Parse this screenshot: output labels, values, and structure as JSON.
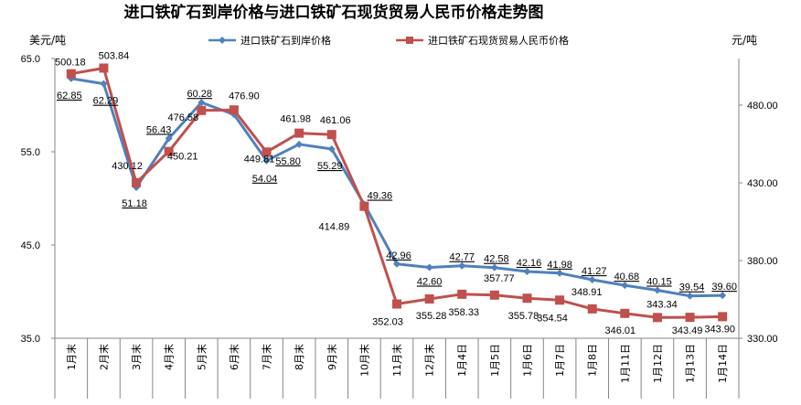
{
  "chart_data": {
    "type": "line",
    "title": "进口铁矿石到岸价格与进口铁矿石现货贸易人民币价格走势图",
    "left_axis_label": "美元/吨",
    "right_axis_label": "元/吨",
    "left_ylim": [
      35,
      65
    ],
    "right_ylim": [
      330,
      510
    ],
    "left_ticks": [
      "35.0",
      "45.0",
      "55.0",
      "65.0"
    ],
    "right_ticks": [
      "330.00",
      "380.00",
      "430.00",
      "480.00"
    ],
    "legend_position": "top",
    "grid": false,
    "categories": [
      "1月末",
      "2月末",
      "3月末",
      "4月末",
      "5月末",
      "6月末",
      "7月末",
      "8月末",
      "9月末",
      "10月末",
      "11月末",
      "12月末",
      "1月4日",
      "1月5日",
      "1月6日",
      "1月7日",
      "1月8日",
      "1月11日",
      "1月12日",
      "1月13日",
      "1月14日"
    ],
    "series": [
      {
        "name": "进口铁矿石到岸价格",
        "axis": "left",
        "color": "#4f81bd",
        "marker": "diamond",
        "values": [
          62.85,
          62.29,
          51.18,
          56.43,
          60.28,
          59.0,
          54.04,
          55.8,
          55.29,
          49.36,
          42.96,
          42.6,
          42.77,
          42.58,
          42.16,
          41.98,
          41.27,
          40.68,
          40.15,
          39.54,
          39.6
        ],
        "labels": [
          "62.85",
          "62.29",
          "51.18",
          "56.43",
          "60.28",
          "",
          "54.04",
          "55.80",
          "55.29",
          "49.36",
          "42.96",
          "42.60",
          "42.77",
          "42.58",
          "42.16",
          "41.98",
          "41.27",
          "40.68",
          "40.15",
          "39.54",
          "39.60"
        ]
      },
      {
        "name": "进口铁矿石现货贸易人民币价格",
        "axis": "right",
        "color": "#c0504d",
        "marker": "square",
        "values": [
          500.18,
          503.84,
          430.12,
          450.21,
          476.58,
          476.9,
          449.81,
          461.98,
          461.06,
          414.89,
          352.03,
          355.28,
          358.33,
          357.77,
          355.78,
          354.54,
          348.91,
          346.01,
          343.34,
          343.49,
          343.9
        ],
        "labels": [
          "500.18",
          "503.84",
          "430.12",
          "450.21",
          "476.58",
          "476.90",
          "449.81",
          "461.98",
          "461.06",
          "414.89",
          "352.03",
          "355.28",
          "358.33",
          "357.77",
          "355.78",
          "354.54",
          "348.91",
          "346.01",
          "343.34",
          "343.49",
          "343.90"
        ]
      }
    ]
  }
}
